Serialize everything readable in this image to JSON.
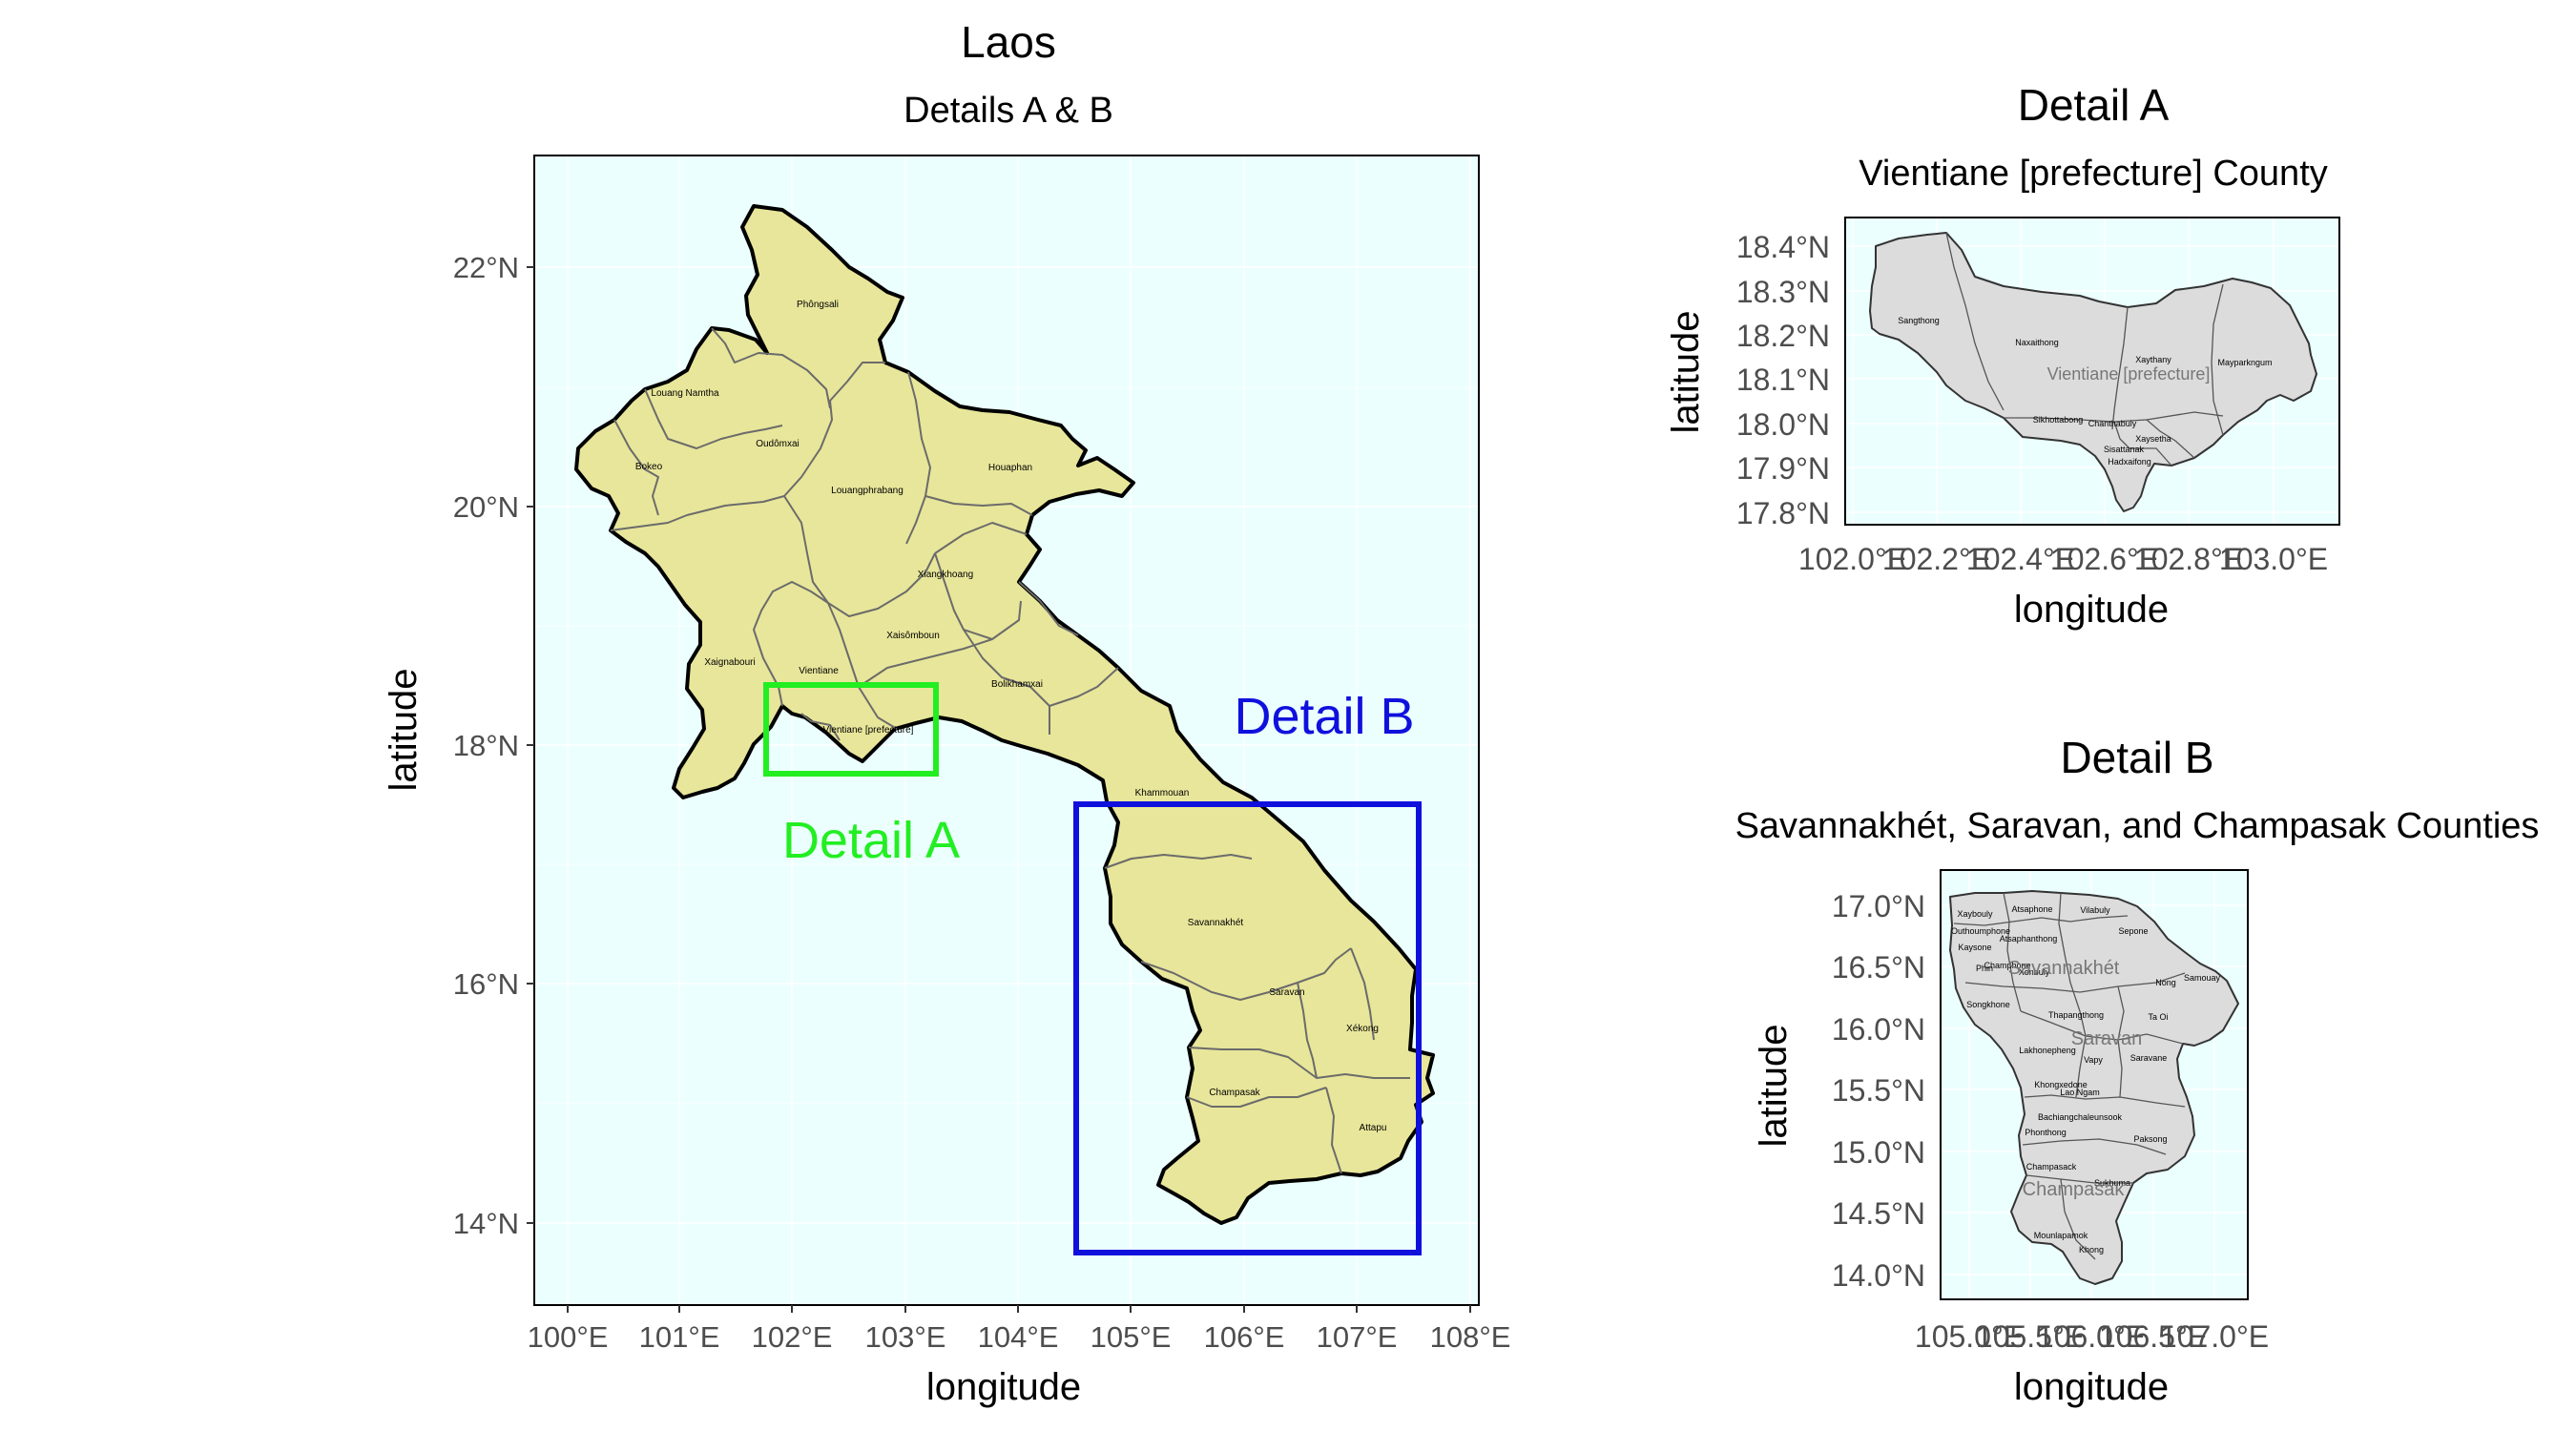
{
  "main_map": {
    "title": "Laos",
    "subtitle": "Details A & B",
    "xlabel": "longitude",
    "ylabel": "latitude",
    "x_ticks": [
      "100°E",
      "101°E",
      "102°E",
      "103°E",
      "104°E",
      "105°E",
      "106°E",
      "107°E",
      "108°E"
    ],
    "y_ticks": [
      "22°N",
      "20°N",
      "18°N",
      "16°N",
      "14°N"
    ],
    "box_a_label": "Detail A",
    "box_b_label": "Detail B",
    "box_a_color": "#22ee22",
    "box_b_color": "#1010dd",
    "panel_bg": "#ebfffe",
    "country_fill": "#e8e69a",
    "provinces": [
      "Phôngsali",
      "Louang Namtha",
      "Oudômxai",
      "Bokeo",
      "Louangphrabang",
      "Houaphan",
      "Xiangkhoang",
      "Xaisômboun",
      "Xaignabouri",
      "Vientiane",
      "Vientiane [prefecture]",
      "Bolikhamxai",
      "Khammouan",
      "Savannakhét",
      "Saravan",
      "Xékong",
      "Champasak",
      "Attapu"
    ]
  },
  "detail_a": {
    "title": "Detail A",
    "subtitle": "Vientiane [prefecture] County",
    "xlabel": "longitude",
    "ylabel": "latitude",
    "x_ticks": [
      "102.0°E",
      "102.2°E",
      "102.4°E",
      "102.6°E",
      "102.8°E",
      "103.0°E"
    ],
    "y_ticks": [
      "18.4°N",
      "18.3°N",
      "18.2°N",
      "18.1°N",
      "18.0°N",
      "17.9°N",
      "17.8°N"
    ],
    "county_label": "Vientiane [prefecture]",
    "districts": [
      "Sangthong",
      "Naxaithong",
      "Xaythany",
      "Mayparkngum",
      "Sikhottabong",
      "Chanthabuly",
      "Xaysetha",
      "Sisattanak",
      "Hadxaifong"
    ]
  },
  "detail_b": {
    "title": "Detail B",
    "subtitle": "Savannakhét, Saravan, and Champasak Counties",
    "xlabel": "longitude",
    "ylabel": "latitude",
    "x_ticks": [
      "105.0°E",
      "105.5°E",
      "106.0°E",
      "106.5°E",
      "107.0°E"
    ],
    "y_ticks": [
      "17.0°N",
      "16.5°N",
      "16.0°N",
      "15.5°N",
      "15.0°N",
      "14.5°N",
      "14.0°N"
    ],
    "county_labels": [
      "Savannakhét",
      "Saravan",
      "Champasak"
    ],
    "districts": [
      "Xaybouly",
      "Atsaphone",
      "Vilabuly",
      "Outhoumphone",
      "Atsaphanthong",
      "Sepone",
      "Kaysone",
      "Phin",
      "Champhone",
      "Xonbuly",
      "Nong",
      "Samouay",
      "Songkhone",
      "Thapangthong",
      "Ta Oi",
      "Lakhonepheng",
      "Saravane",
      "Vapy",
      "Khongxedone",
      "Lao Ngam",
      "Bachiangchaleunsook",
      "Paksong",
      "Phonthong",
      "Champasack",
      "Sukhuma",
      "Mounlapamok",
      "Khong"
    ]
  }
}
